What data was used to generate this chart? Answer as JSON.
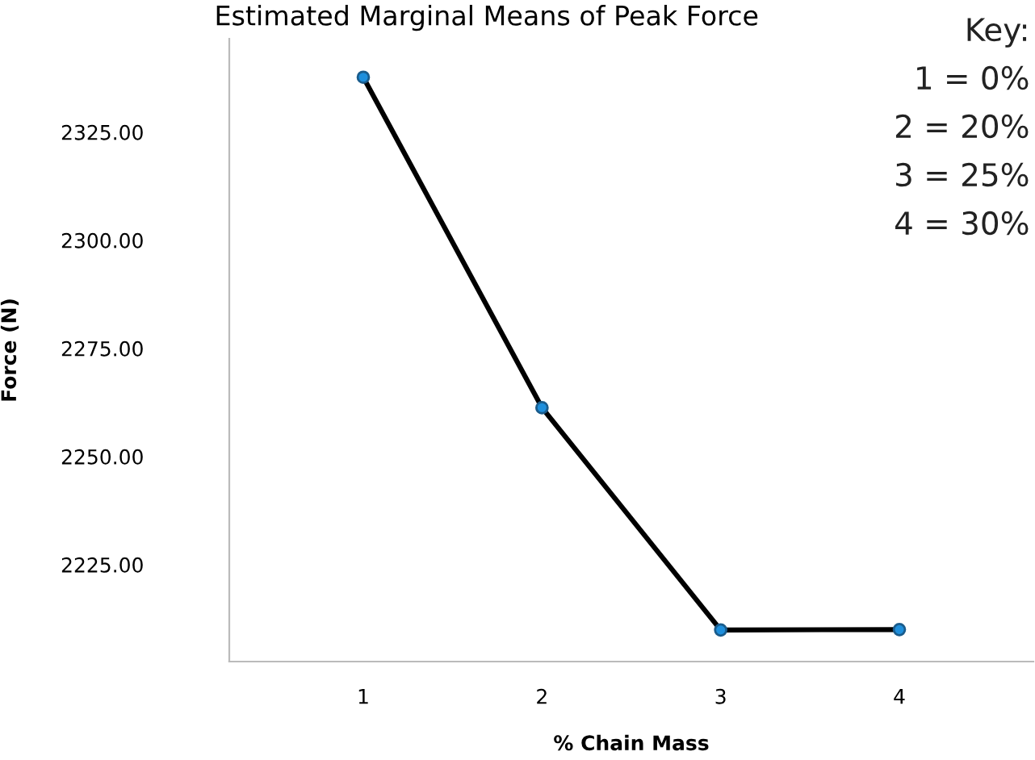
{
  "chart_data": {
    "type": "line",
    "title": "Estimated Marginal Means of Peak Force",
    "xlabel": "% Chain Mass",
    "ylabel": "Force (N)",
    "categories": [
      "1",
      "2",
      "3",
      "4"
    ],
    "series": [
      {
        "color": "#1f8fdc",
        "values": [
          2337.7,
          2261.3,
          2209.9,
          2210.0
        ]
      }
    ],
    "ylim": [
      2202.6,
      2346.6
    ],
    "yticks": [
      {
        "value": 2225,
        "label": "2225.00"
      },
      {
        "value": 2250,
        "label": "2250.00"
      },
      {
        "value": 2275,
        "label": "2275.00"
      },
      {
        "value": 2300,
        "label": "2300.00"
      },
      {
        "value": 2325,
        "label": "2325.00"
      }
    ],
    "marker": "circle",
    "line_style": "solid",
    "grid": false,
    "legend": false,
    "annotations": [
      "Key:",
      "1 = 0%",
      "2 = 20%",
      "3 = 25%",
      "4 = 30%"
    ]
  }
}
